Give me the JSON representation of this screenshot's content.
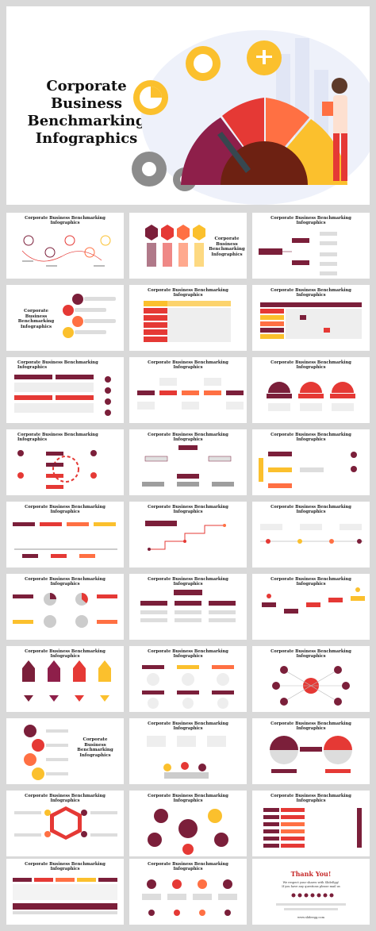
{
  "hero": {
    "title_line1": "Corporate",
    "title_line2": "Business",
    "title_line3": "Benchmarking",
    "title_line4": "Infographics"
  },
  "thumb_title": "Corporate Business Benchmarking Infographics",
  "side_title_lines": [
    "Corporate",
    "Business",
    "Benchmarking",
    "Infographics"
  ],
  "thank_you": {
    "title": "Thank You!",
    "line1": "We respect your shares with SlideEgg!",
    "line2": "If you have any questions please mail us",
    "url": "www.slideegg.com"
  },
  "colors": {
    "maroon": "#7b1f3a",
    "red": "#e53935",
    "orange": "#ff7043",
    "yellow": "#fbc02d",
    "gray": "#9e9e9e",
    "light_gray": "#e6e6e6"
  }
}
